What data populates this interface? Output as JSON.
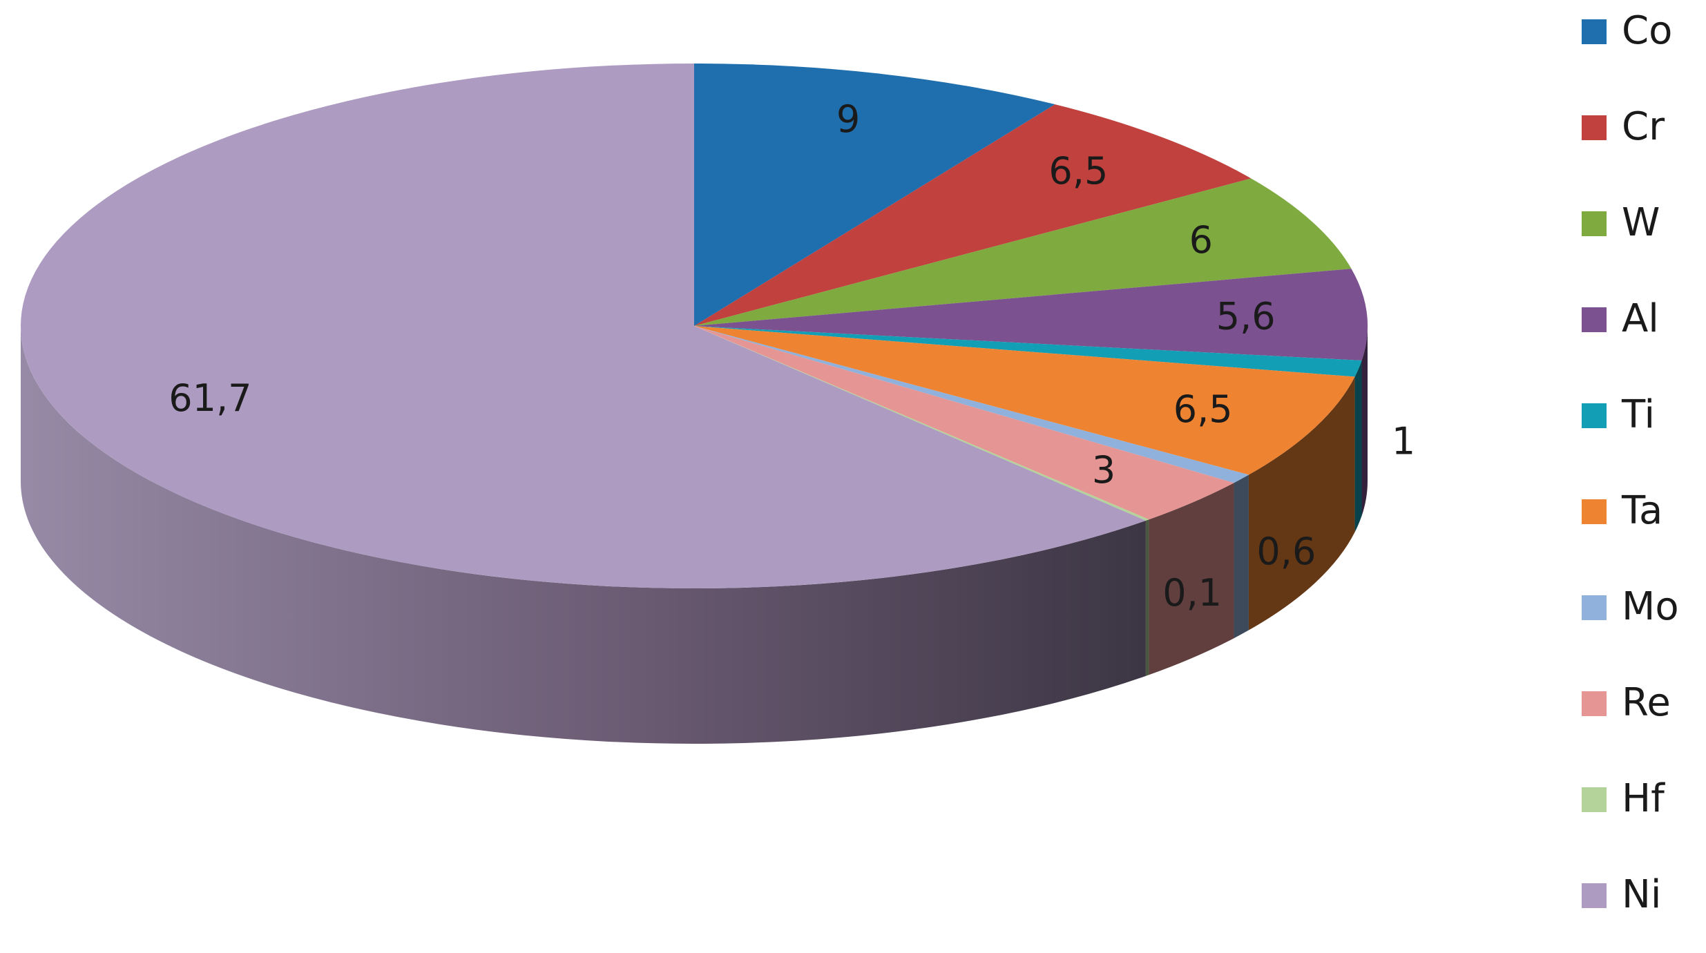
{
  "chart_data": {
    "type": "pie",
    "style": "3d",
    "title": "",
    "categories": [
      "Co",
      "Cr",
      "W",
      "Al",
      "Ti",
      "Ta",
      "Mo",
      "Re",
      "Hf",
      "Ni"
    ],
    "values": [
      9,
      6.5,
      6,
      5.6,
      1,
      6.5,
      0.6,
      3,
      0.1,
      61.7
    ],
    "value_labels": [
      "9",
      "6,5",
      "6",
      "5,6",
      "1",
      "6,5",
      "0,6",
      "3",
      "0,1",
      "61,7"
    ],
    "colors": [
      "#1f6fae",
      "#c0413e",
      "#7eaa40",
      "#7b5190",
      "#129eb4",
      "#ee8432",
      "#8fb1dc",
      "#e59593",
      "#b4d39a",
      "#ae9bc1"
    ],
    "legend_position": "right",
    "grid": false
  }
}
